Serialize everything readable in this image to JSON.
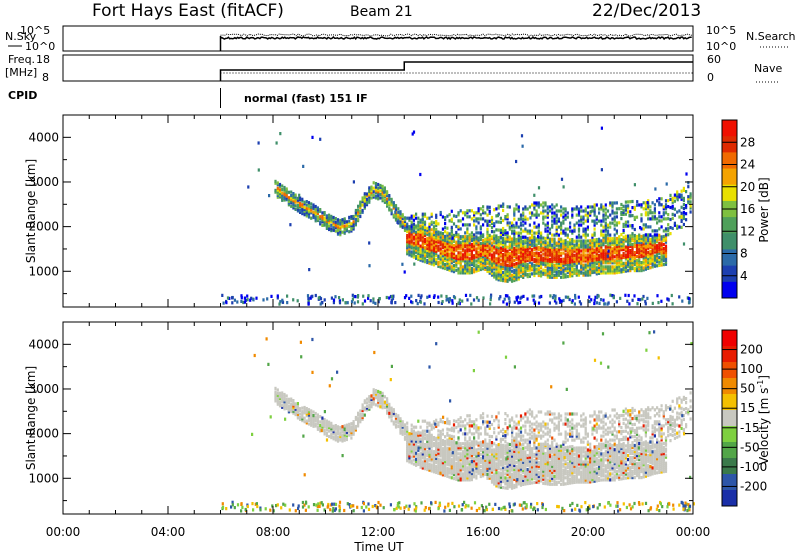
{
  "header": {
    "station": "Fort Hays East (fitACF)",
    "beam": "Beam 21",
    "date": "22/Dec/2013"
  },
  "panels": {
    "nsky": {
      "label": "N.Sky",
      "right_label": "N.Search",
      "left_ticks": [
        "10^5",
        "10^0"
      ],
      "right_ticks": [
        "10^5",
        "10^0"
      ]
    },
    "freq": {
      "label_line1": "Freq.",
      "label_line2": "[MHz]",
      "right_label": "Nave",
      "left_ticks": [
        "18",
        "8"
      ],
      "right_ticks": [
        "60",
        "0"
      ]
    },
    "cpid": {
      "label": "CPID",
      "mode": "normal (fast) 151 IF"
    }
  },
  "chart_data": {
    "type": "heatmap",
    "xlabel": "Time UT",
    "x_ticks": [
      "00:00",
      "04:00",
      "08:00",
      "12:00",
      "16:00",
      "20:00",
      "00:00"
    ],
    "x_range_hours": [
      0,
      24
    ],
    "data_start_hour": 6,
    "mode_change_hour": 13,
    "ylabel": "Slant Range [km]",
    "y_ticks": [
      1000,
      2000,
      3000,
      4000
    ],
    "y_range": [
      200,
      4500
    ],
    "power": {
      "colorbar_label": "Power [dB]",
      "colorbar_ticks": [
        "28",
        "24",
        "20",
        "16",
        "12",
        "8",
        "4"
      ],
      "colors": [
        "#0000ee",
        "#1c3fb0",
        "#2b6aa8",
        "#3f8f6a",
        "#4fa05a",
        "#7ec040",
        "#e8e000",
        "#f4a300",
        "#f06a00",
        "#e02a00",
        "#f01000"
      ]
    },
    "velocity": {
      "colorbar_label": "Velocity [m s",
      "colorbar_label_sup": "-1",
      "colorbar_label_end": "]",
      "colorbar_ticks": [
        "200",
        "100",
        "50",
        "15",
        "-15",
        "-50",
        "-100",
        "-200"
      ],
      "colors": [
        "#1a2fa8",
        "#2d56a8",
        "#3a7a4a",
        "#52a648",
        "#7ed040",
        "#c8c8c0",
        "#f4c000",
        "#f08a00",
        "#f05000",
        "#e81c00",
        "#f00000"
      ]
    },
    "band_main": [
      {
        "t": 13.0,
        "lo": 1600,
        "hi": 2000
      },
      {
        "t": 13.5,
        "lo": 1450,
        "hi": 2050
      },
      {
        "t": 14.0,
        "lo": 1350,
        "hi": 1950
      },
      {
        "t": 14.5,
        "lo": 1250,
        "hi": 1850
      },
      {
        "t": 15.0,
        "lo": 1150,
        "hi": 1800
      },
      {
        "t": 15.5,
        "lo": 1150,
        "hi": 1800
      },
      {
        "t": 16.0,
        "lo": 1250,
        "hi": 1800
      },
      {
        "t": 16.5,
        "lo": 1000,
        "hi": 1750
      },
      {
        "t": 17.0,
        "lo": 950,
        "hi": 1750
      },
      {
        "t": 17.5,
        "lo": 1050,
        "hi": 1750
      },
      {
        "t": 18.0,
        "lo": 1100,
        "hi": 1750
      },
      {
        "t": 18.5,
        "lo": 1050,
        "hi": 1750
      },
      {
        "t": 19.0,
        "lo": 1050,
        "hi": 1700
      },
      {
        "t": 19.5,
        "lo": 1100,
        "hi": 1700
      },
      {
        "t": 20.0,
        "lo": 1100,
        "hi": 1700
      },
      {
        "t": 20.5,
        "lo": 1150,
        "hi": 1750
      },
      {
        "t": 21.0,
        "lo": 1150,
        "hi": 1750
      },
      {
        "t": 21.5,
        "lo": 1200,
        "hi": 1750
      },
      {
        "t": 22.0,
        "lo": 1200,
        "hi": 1800
      },
      {
        "t": 22.5,
        "lo": 1300,
        "hi": 1800
      },
      {
        "t": 23.0,
        "lo": 1350,
        "hi": 1800
      }
    ],
    "band_upper": [
      {
        "t": 13.0,
        "lo": 2000,
        "hi": 2300
      },
      {
        "t": 14.0,
        "lo": 2000,
        "hi": 2350
      },
      {
        "t": 15.0,
        "lo": 1850,
        "hi": 2400
      },
      {
        "t": 16.0,
        "lo": 1850,
        "hi": 2500
      },
      {
        "t": 17.0,
        "lo": 1800,
        "hi": 2500
      },
      {
        "t": 18.0,
        "lo": 1800,
        "hi": 2600
      },
      {
        "t": 19.0,
        "lo": 1800,
        "hi": 2500
      },
      {
        "t": 20.0,
        "lo": 1800,
        "hi": 2500
      },
      {
        "t": 21.0,
        "lo": 1800,
        "hi": 2600
      },
      {
        "t": 22.0,
        "lo": 1850,
        "hi": 2600
      },
      {
        "t": 23.0,
        "lo": 1850,
        "hi": 2700
      },
      {
        "t": 23.5,
        "lo": 2000,
        "hi": 2900
      },
      {
        "t": 23.9,
        "lo": 2300,
        "hi": 3100
      }
    ],
    "arc_track": [
      {
        "t": 8.0,
        "r": 2950
      },
      {
        "t": 8.5,
        "r": 2750
      },
      {
        "t": 9.0,
        "r": 2550
      },
      {
        "t": 9.5,
        "r": 2400
      },
      {
        "t": 10.0,
        "r": 2200
      },
      {
        "t": 10.5,
        "r": 2050
      },
      {
        "t": 11.0,
        "r": 2150
      },
      {
        "t": 11.5,
        "r": 2700
      },
      {
        "t": 11.8,
        "r": 2900
      },
      {
        "t": 12.2,
        "r": 2800
      },
      {
        "t": 12.5,
        "r": 2500
      },
      {
        "t": 13.0,
        "r": 2100
      }
    ]
  }
}
